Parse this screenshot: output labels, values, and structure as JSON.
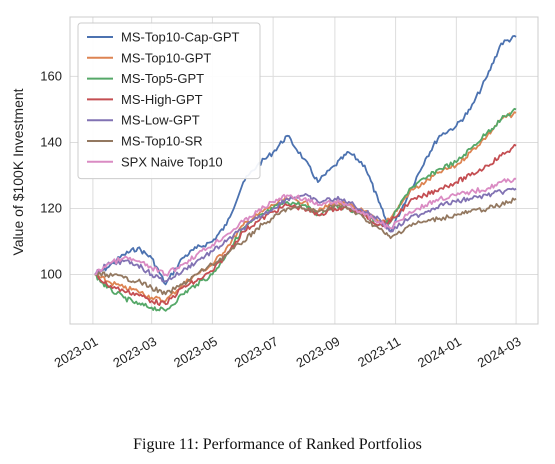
{
  "caption": "Figure 11: Performance of Ranked Portfolios",
  "chart_data": {
    "type": "line",
    "title": "",
    "xlabel": "",
    "ylabel": "Value of $100K Investment",
    "xlim": [
      "2022-12-09",
      "2024-03-23"
    ],
    "ylim": [
      85,
      178
    ],
    "yticks": [
      100,
      120,
      140,
      160
    ],
    "xticks": [
      "2023-01",
      "2023-03",
      "2023-05",
      "2023-07",
      "2023-09",
      "2023-11",
      "2024-01",
      "2024-03"
    ],
    "grid": true,
    "legend": "top-left",
    "series": [
      {
        "name": "MS-Top10-Cap-GPT",
        "color": "#4c72b0",
        "x": [
          "2023-01-03",
          "2023-01-15",
          "2023-02-01",
          "2023-02-15",
          "2023-03-01",
          "2023-03-15",
          "2023-04-01",
          "2023-04-15",
          "2023-05-01",
          "2023-05-15",
          "2023-06-01",
          "2023-06-15",
          "2023-07-01",
          "2023-07-15",
          "2023-08-01",
          "2023-08-15",
          "2023-09-01",
          "2023-09-15",
          "2023-10-01",
          "2023-10-15",
          "2023-10-27",
          "2023-11-15",
          "2023-12-01",
          "2023-12-15",
          "2024-01-01",
          "2024-01-15",
          "2024-02-01",
          "2024-02-15",
          "2024-03-01"
        ],
        "values": [
          100,
          102,
          106,
          108,
          105,
          97,
          105,
          108,
          110,
          115,
          128,
          133,
          137,
          142,
          135,
          128,
          133,
          137,
          133,
          122,
          113,
          125,
          135,
          142,
          145,
          150,
          160,
          170,
          172
        ]
      },
      {
        "name": "MS-Top10-GPT",
        "color": "#dd8452",
        "x": [
          "2023-01-03",
          "2023-01-15",
          "2023-02-01",
          "2023-02-15",
          "2023-03-01",
          "2023-03-15",
          "2023-04-01",
          "2023-04-15",
          "2023-05-01",
          "2023-05-15",
          "2023-06-01",
          "2023-06-15",
          "2023-07-01",
          "2023-07-15",
          "2023-08-01",
          "2023-08-15",
          "2023-09-01",
          "2023-09-15",
          "2023-10-01",
          "2023-10-15",
          "2023-10-27",
          "2023-11-15",
          "2023-12-01",
          "2023-12-15",
          "2024-01-01",
          "2024-01-15",
          "2024-02-01",
          "2024-02-15",
          "2024-03-01"
        ],
        "values": [
          100,
          98,
          96,
          95,
          93,
          92,
          97,
          100,
          103,
          108,
          115,
          118,
          121,
          123,
          122,
          119,
          122,
          121,
          119,
          116,
          117,
          125,
          128,
          131,
          133,
          137,
          142,
          147,
          149
        ]
      },
      {
        "name": "MS-Top5-GPT",
        "color": "#55a868",
        "x": [
          "2023-01-03",
          "2023-01-15",
          "2023-02-01",
          "2023-02-15",
          "2023-03-01",
          "2023-03-15",
          "2023-04-01",
          "2023-04-15",
          "2023-05-01",
          "2023-05-15",
          "2023-06-01",
          "2023-06-15",
          "2023-07-01",
          "2023-07-15",
          "2023-08-01",
          "2023-08-15",
          "2023-09-01",
          "2023-09-15",
          "2023-10-01",
          "2023-10-15",
          "2023-10-27",
          "2023-11-15",
          "2023-12-01",
          "2023-12-15",
          "2024-01-01",
          "2024-01-15",
          "2024-02-01",
          "2024-02-15",
          "2024-03-01"
        ],
        "values": [
          100,
          96,
          93,
          91,
          90,
          89,
          94,
          97,
          100,
          106,
          114,
          117,
          120,
          122,
          121,
          118,
          121,
          120,
          118,
          115,
          116,
          126,
          129,
          132,
          134,
          138,
          143,
          147,
          150
        ]
      },
      {
        "name": "MS-High-GPT",
        "color": "#c44e52",
        "x": [
          "2023-01-03",
          "2023-01-15",
          "2023-02-01",
          "2023-02-15",
          "2023-03-01",
          "2023-03-15",
          "2023-04-01",
          "2023-04-15",
          "2023-05-01",
          "2023-05-15",
          "2023-06-01",
          "2023-06-15",
          "2023-07-01",
          "2023-07-15",
          "2023-08-01",
          "2023-08-15",
          "2023-09-01",
          "2023-09-15",
          "2023-10-01",
          "2023-10-15",
          "2023-10-27",
          "2023-11-15",
          "2023-12-01",
          "2023-12-15",
          "2024-01-01",
          "2024-01-15",
          "2024-02-01",
          "2024-02-15",
          "2024-03-01"
        ],
        "values": [
          100,
          97,
          95,
          94,
          92,
          91,
          96,
          98,
          101,
          106,
          113,
          116,
          119,
          121,
          120,
          118,
          120,
          120,
          118,
          115,
          116,
          122,
          124,
          126,
          128,
          130,
          133,
          136,
          139
        ]
      },
      {
        "name": "MS-Low-GPT",
        "color": "#8172b3",
        "x": [
          "2023-01-03",
          "2023-01-15",
          "2023-02-01",
          "2023-02-15",
          "2023-03-01",
          "2023-03-15",
          "2023-04-01",
          "2023-04-15",
          "2023-05-01",
          "2023-05-15",
          "2023-06-01",
          "2023-06-15",
          "2023-07-01",
          "2023-07-15",
          "2023-08-01",
          "2023-08-15",
          "2023-09-01",
          "2023-09-15",
          "2023-10-01",
          "2023-10-15",
          "2023-10-27",
          "2023-11-15",
          "2023-12-01",
          "2023-12-15",
          "2024-01-01",
          "2024-01-15",
          "2024-02-01",
          "2024-02-15",
          "2024-03-01"
        ],
        "values": [
          100,
          103,
          104,
          103,
          100,
          98,
          101,
          104,
          107,
          110,
          114,
          117,
          120,
          123,
          124,
          122,
          123,
          122,
          119,
          117,
          113,
          117,
          119,
          121,
          122,
          123,
          124,
          125,
          126
        ]
      },
      {
        "name": "MS-Top10-SR",
        "color": "#937860",
        "x": [
          "2023-01-03",
          "2023-01-15",
          "2023-02-01",
          "2023-02-15",
          "2023-03-01",
          "2023-03-15",
          "2023-04-01",
          "2023-04-15",
          "2023-05-01",
          "2023-05-15",
          "2023-06-01",
          "2023-06-15",
          "2023-07-01",
          "2023-07-15",
          "2023-08-01",
          "2023-08-15",
          "2023-09-01",
          "2023-09-15",
          "2023-10-01",
          "2023-10-15",
          "2023-10-27",
          "2023-11-15",
          "2023-12-01",
          "2023-12-15",
          "2024-01-01",
          "2024-01-15",
          "2024-02-01",
          "2024-02-15",
          "2024-03-01"
        ],
        "values": [
          100,
          100,
          99,
          98,
          96,
          94,
          97,
          100,
          103,
          106,
          110,
          114,
          117,
          120,
          120,
          119,
          121,
          120,
          117,
          114,
          111,
          115,
          116,
          117,
          118,
          119,
          120,
          121,
          123
        ]
      },
      {
        "name": "SPX Naive Top10",
        "color": "#da8bc3",
        "x": [
          "2023-01-03",
          "2023-01-15",
          "2023-02-01",
          "2023-02-15",
          "2023-03-01",
          "2023-03-15",
          "2023-04-01",
          "2023-04-15",
          "2023-05-01",
          "2023-05-15",
          "2023-06-01",
          "2023-06-15",
          "2023-07-01",
          "2023-07-15",
          "2023-08-01",
          "2023-08-15",
          "2023-09-01",
          "2023-09-15",
          "2023-10-01",
          "2023-10-15",
          "2023-10-27",
          "2023-11-15",
          "2023-12-01",
          "2023-12-15",
          "2024-01-01",
          "2024-01-15",
          "2024-02-01",
          "2024-02-15",
          "2024-03-01"
        ],
        "values": [
          100,
          103,
          105,
          104,
          102,
          100,
          103,
          106,
          109,
          112,
          116,
          119,
          122,
          124,
          123,
          121,
          122,
          121,
          118,
          116,
          114,
          119,
          121,
          123,
          124,
          125,
          126,
          128,
          129
        ]
      }
    ]
  }
}
